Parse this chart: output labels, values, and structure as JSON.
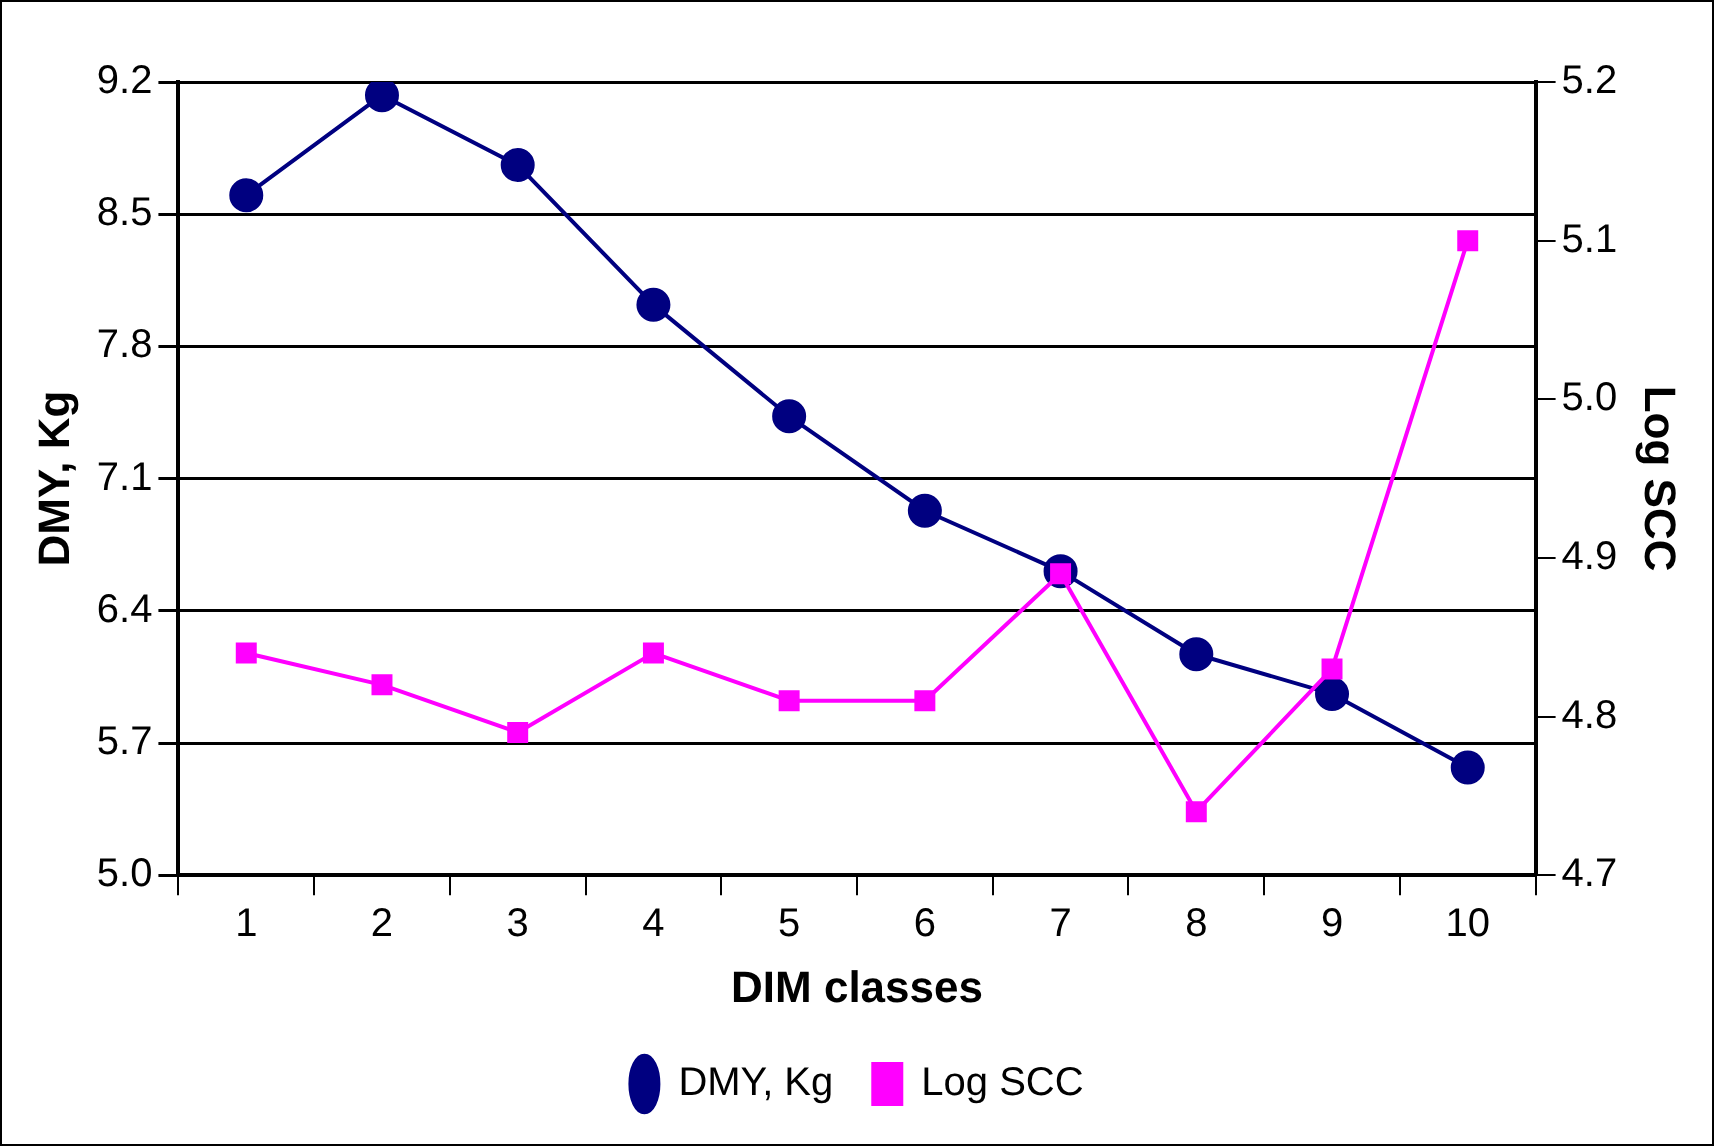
{
  "chart_data": {
    "type": "line",
    "xlabel": "DIM classes",
    "ylabel": "DMY, Kg",
    "y2label": "Log SCC",
    "categories": [
      "1",
      "2",
      "3",
      "4",
      "5",
      "6",
      "7",
      "8",
      "9",
      "10"
    ],
    "series": [
      {
        "name": "DMY, Kg",
        "color": "#000080",
        "marker": "circle",
        "values": [
          8.6,
          9.13,
          8.76,
          8.02,
          7.43,
          6.93,
          6.61,
          6.17,
          5.96,
          5.57
        ]
      },
      {
        "name": "Log SCC",
        "color": "#ff00ff",
        "marker": "square",
        "axis": "y2",
        "values": [
          4.84,
          4.82,
          4.79,
          4.84,
          4.81,
          4.81,
          4.89,
          4.74,
          4.83,
          5.1
        ]
      }
    ],
    "ylim": [
      5.0,
      9.2
    ],
    "yticks": [
      {
        "value": 5,
        "label": "5.0"
      },
      {
        "value": 5.7,
        "label": "5.7"
      },
      {
        "value": 6.4,
        "label": "6.4"
      },
      {
        "value": 7.1,
        "label": "7.1"
      },
      {
        "value": 7.8,
        "label": "7.8"
      },
      {
        "value": 8.5,
        "label": "8.5"
      },
      {
        "value": 9.2,
        "label": "9.2"
      }
    ],
    "y2lim": [
      4.7,
      5.2
    ],
    "y2ticks": [
      {
        "value": 4.7,
        "label": "4.7"
      },
      {
        "value": 4.8,
        "label": "4.8"
      },
      {
        "value": 4.9,
        "label": "4.9"
      },
      {
        "value": 5,
        "label": "5.0"
      },
      {
        "value": 5.1,
        "label": "5.1"
      },
      {
        "value": 5.2,
        "label": "5.2"
      }
    ],
    "grid": "y",
    "legend": "bottom"
  }
}
